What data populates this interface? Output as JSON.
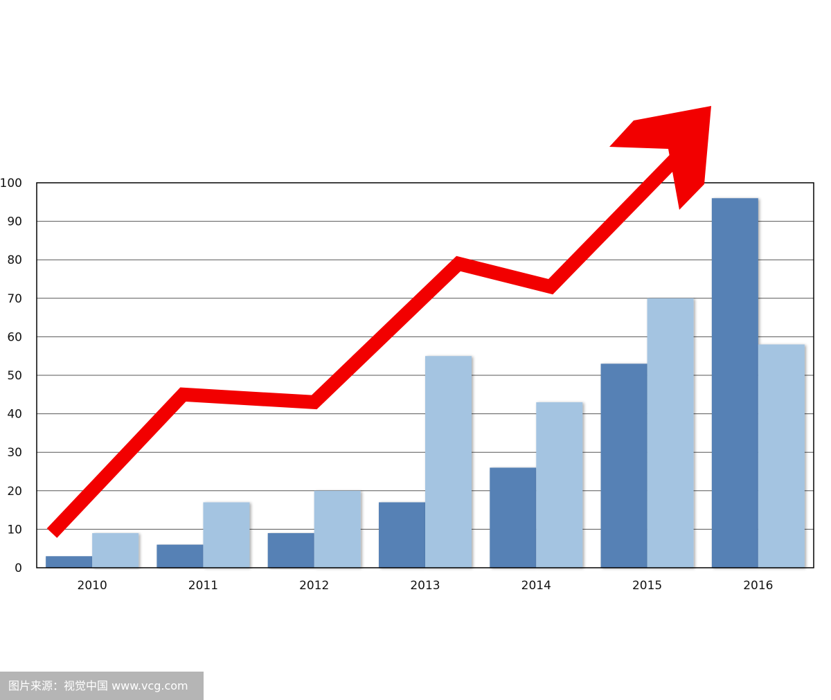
{
  "colors": {
    "series_a": "#5781b5",
    "series_b": "#a4c4e1",
    "arrow": "#f20000",
    "grid": "#555555",
    "frame": "#000000"
  },
  "chart_data": {
    "type": "bar",
    "categories": [
      "2010",
      "2011",
      "2012",
      "2013",
      "2014",
      "2015",
      "2016"
    ],
    "series": [
      {
        "values": [
          3,
          6,
          9,
          17,
          26,
          53,
          96
        ]
      },
      {
        "values": [
          9,
          17,
          20,
          55,
          43,
          70,
          58
        ]
      }
    ],
    "trend_arrow": {
      "values": [
        9,
        45,
        43,
        79,
        73,
        108
      ]
    },
    "yticks": [
      "0",
      "10",
      "20",
      "30",
      "40",
      "50",
      "60",
      "70",
      "80",
      "90",
      "100"
    ],
    "ylim": [
      0,
      100
    ],
    "grid": true,
    "legend": "none"
  },
  "watermark": {
    "text": "图片来源：视觉中国 www.vcg.com"
  }
}
